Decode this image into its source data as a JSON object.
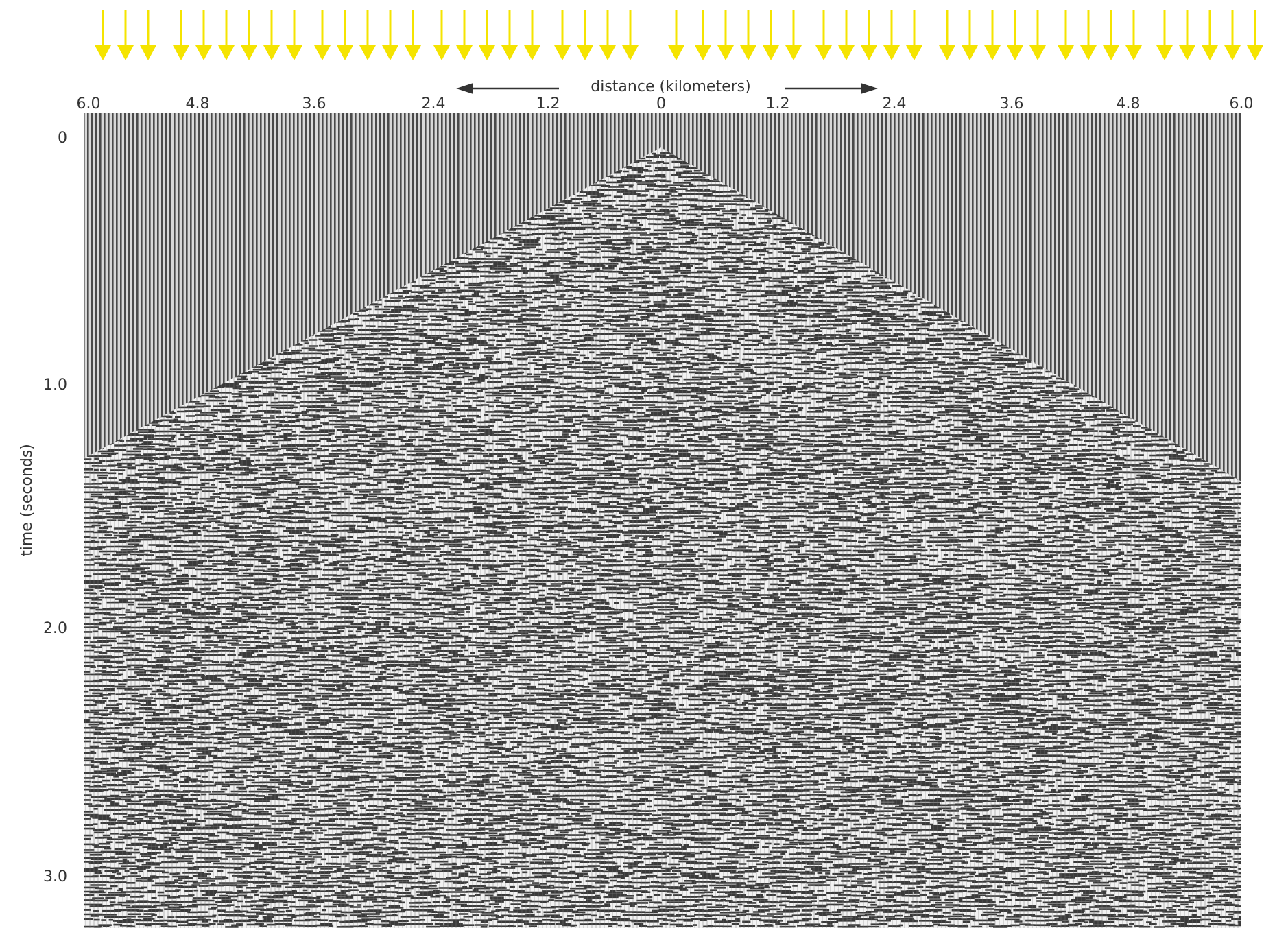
{
  "figure": {
    "x_axis_label": "distance (kilometers)",
    "y_axis_label": "time (seconds)",
    "x_tick_labels": [
      "6.0",
      "4.8",
      "3.6",
      "2.4",
      "1.2",
      "0",
      "1.2",
      "2.4",
      "3.6",
      "4.8",
      "6.0"
    ],
    "y_tick_labels": [
      "0",
      "1.0",
      "2.0",
      "3.0"
    ]
  }
}
